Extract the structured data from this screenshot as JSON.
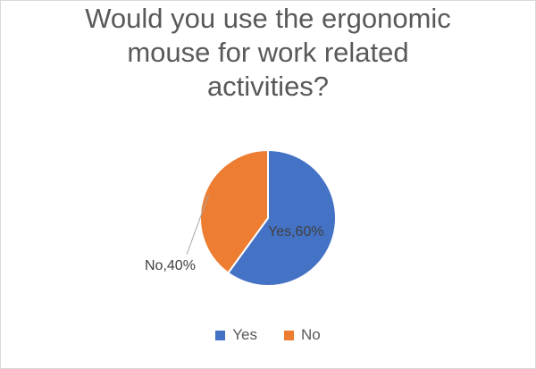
{
  "chart_data": {
    "type": "pie",
    "title_lines": [
      "Would you use the ergonomic",
      "mouse for work related",
      "activities?"
    ],
    "categories": [
      "Yes",
      "No"
    ],
    "values": [
      60,
      40
    ],
    "data_labels": [
      "Yes,60%",
      "No,40%"
    ],
    "colors": [
      "#4472c4",
      "#ed7d31"
    ],
    "legend_position": "bottom"
  }
}
